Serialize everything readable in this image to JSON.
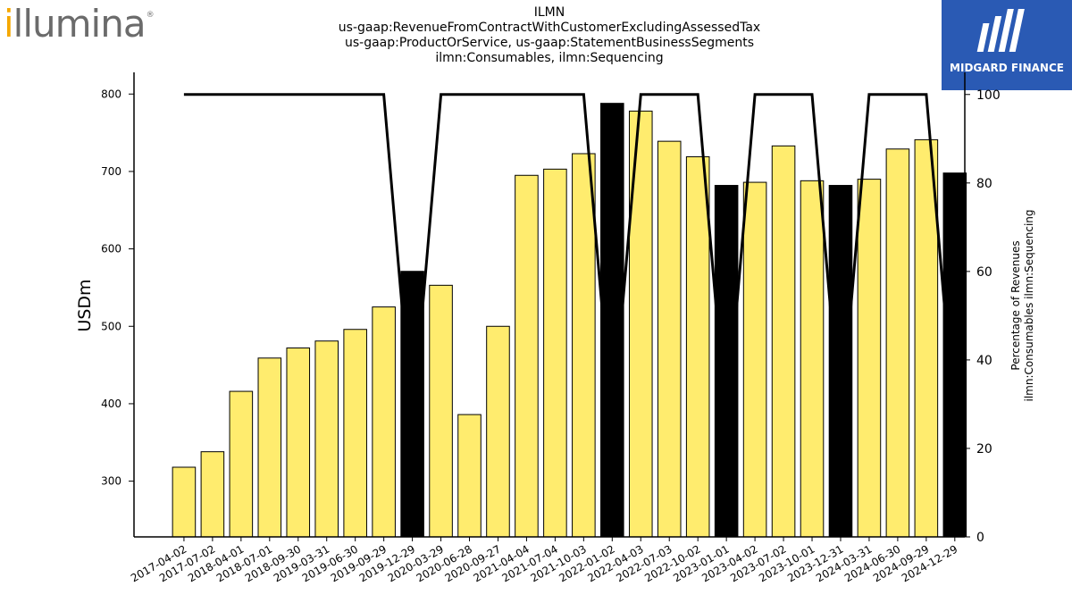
{
  "brand": {
    "logo_text_accent": "i",
    "logo_text_rest": "llumina",
    "logo_mark": "®",
    "badge_name": "MIDGARD FINANCE",
    "badge_color": "#2a5ab4",
    "logo_accent_color": "#f5a800"
  },
  "chart_data": {
    "type": "bar",
    "title_lines": [
      "ILMN",
      "us-gaap:RevenueFromContractWithCustomerExcludingAssessedTax",
      "us-gaap:ProductOrService, us-gaap:StatementBusinessSegments",
      "ilmn:Consumables, ilmn:Sequencing"
    ],
    "ylabel": "USDm",
    "y2label_lines": [
      "Percentage of Revenues",
      "ilmn:Consumables ilmn:Sequencing"
    ],
    "ylim": [
      228,
      828
    ],
    "y2lim": [
      0,
      105
    ],
    "yticks": [
      300,
      400,
      500,
      600,
      700,
      800
    ],
    "y2ticks": [
      0,
      20,
      40,
      60,
      80,
      100
    ],
    "categories": [
      "2017-04-02",
      "2017-07-02",
      "2018-04-01",
      "2018-07-01",
      "2018-09-30",
      "2019-03-31",
      "2019-06-30",
      "2019-09-29",
      "2019-12-29",
      "2020-03-29",
      "2020-06-28",
      "2020-09-27",
      "2021-04-04",
      "2021-07-04",
      "2021-10-03",
      "2022-01-02",
      "2022-04-03",
      "2022-07-03",
      "2022-10-02",
      "2023-01-01",
      "2023-04-02",
      "2023-07-02",
      "2023-10-01",
      "2023-12-31",
      "2024-03-31",
      "2024-06-30",
      "2024-09-29",
      "2024-12-29"
    ],
    "series": [
      {
        "type": "bar",
        "values": [
          318,
          338,
          416,
          459,
          472,
          481,
          496,
          525,
          571,
          553,
          386,
          500,
          695,
          703,
          723,
          788,
          778,
          739,
          719,
          682,
          686,
          733,
          688,
          682,
          690,
          729,
          741,
          698
        ],
        "highlight": [
          false,
          false,
          false,
          false,
          false,
          false,
          false,
          false,
          true,
          false,
          false,
          false,
          false,
          false,
          false,
          true,
          false,
          false,
          false,
          true,
          false,
          false,
          false,
          true,
          false,
          false,
          false,
          true
        ],
        "color": "#ffec6e",
        "highlight_color": "#000000"
      },
      {
        "type": "line",
        "axis": "y2",
        "values": [
          100,
          100,
          100,
          100,
          100,
          100,
          100,
          100,
          25,
          100,
          100,
          100,
          100,
          100,
          100,
          25,
          100,
          100,
          100,
          25,
          100,
          100,
          100,
          25,
          100,
          100,
          100,
          25
        ],
        "color": "#000000"
      }
    ]
  }
}
